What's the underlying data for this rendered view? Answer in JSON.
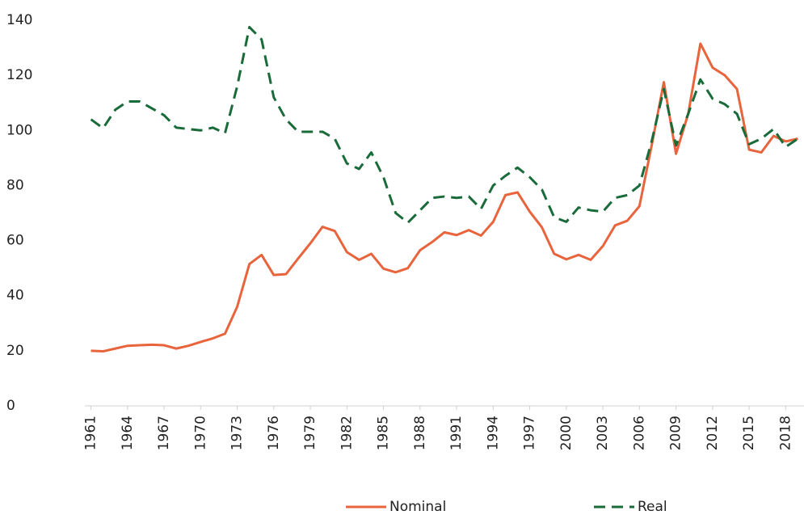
{
  "chart_data": {
    "type": "line",
    "x": [
      1961,
      1962,
      1963,
      1964,
      1965,
      1966,
      1967,
      1968,
      1969,
      1970,
      1971,
      1972,
      1973,
      1974,
      1975,
      1976,
      1977,
      1978,
      1979,
      1980,
      1981,
      1982,
      1983,
      1984,
      1985,
      1986,
      1987,
      1988,
      1989,
      1990,
      1991,
      1992,
      1993,
      1994,
      1995,
      1996,
      1997,
      1998,
      1999,
      2000,
      2001,
      2002,
      2003,
      2004,
      2005,
      2006,
      2007,
      2008,
      2009,
      2010,
      2011,
      2012,
      2013,
      2014,
      2015,
      2016,
      2017,
      2018,
      2019
    ],
    "series": [
      {
        "name": "Nominal",
        "color": "#e8643c",
        "dash": false,
        "values": [
          20,
          19.8,
          20.8,
          21.8,
          22,
          22.2,
          22,
          20.8,
          21.8,
          23.2,
          24.5,
          26.2,
          36,
          51.5,
          54.8,
          47.5,
          47.8,
          53.5,
          59,
          65,
          63.5,
          55.8,
          53,
          55.2,
          49.8,
          48.5,
          50,
          56.5,
          59.5,
          63,
          62,
          63.8,
          61.8,
          66.8,
          76.5,
          77.5,
          70.5,
          64.8,
          55.2,
          53.2,
          54.8,
          53,
          58,
          65.5,
          67.2,
          72.5,
          94.5,
          117.5,
          91.5,
          106,
          131.5,
          122.8,
          120,
          115,
          93,
          92,
          98,
          96,
          97
        ]
      },
      {
        "name": "Real",
        "color": "#1a6b3a",
        "dash": true,
        "values": [
          104,
          100.8,
          107.5,
          110.5,
          110.5,
          108,
          105.5,
          101,
          100.5,
          100,
          101,
          99,
          116,
          137.5,
          133,
          112,
          104,
          99.5,
          99.5,
          99.5,
          97,
          88,
          86,
          92,
          83,
          70,
          66.5,
          71,
          75.5,
          76,
          75.5,
          76,
          71.5,
          80,
          83.5,
          86.5,
          83,
          78.5,
          68.5,
          66.8,
          72,
          71,
          70.5,
          75.5,
          76.5,
          80,
          96,
          115,
          94.5,
          106,
          118.5,
          111.5,
          109.5,
          106,
          95,
          97,
          100.5,
          94,
          97
        ]
      }
    ],
    "xlim": [
      1960.5,
      2019.5
    ],
    "xticks": [
      1961,
      1964,
      1967,
      1970,
      1973,
      1976,
      1979,
      1982,
      1985,
      1988,
      1991,
      1994,
      1997,
      2000,
      2003,
      2006,
      2009,
      2012,
      2015,
      2018
    ],
    "ylim": [
      0,
      140
    ],
    "yticks": [
      0,
      20,
      40,
      60,
      80,
      100,
      120,
      140
    ],
    "legend": "bottom"
  }
}
